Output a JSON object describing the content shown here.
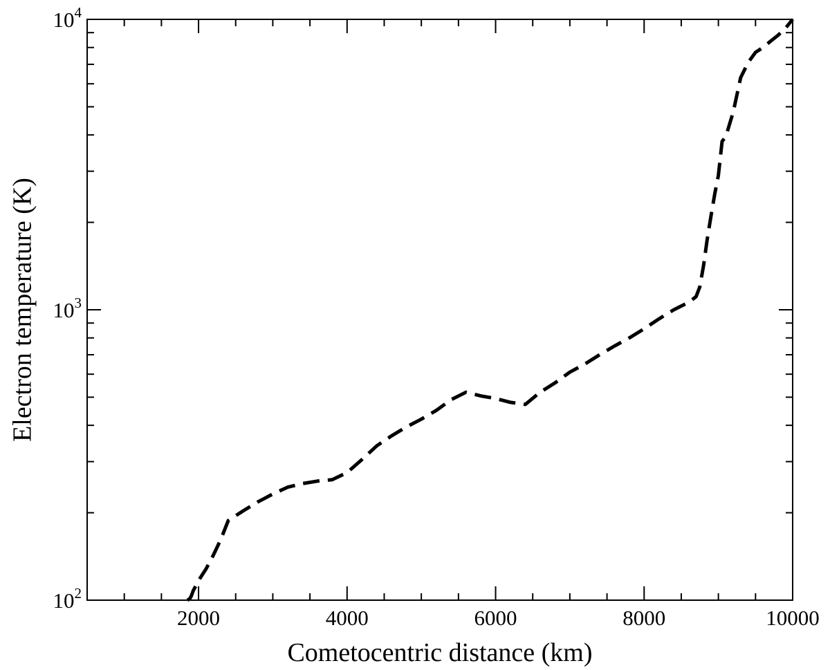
{
  "chart_data": {
    "type": "line",
    "xlabel": "Cometocentric distance (km)",
    "ylabel": "Electron temperature (K)",
    "xlim": [
      500,
      10000
    ],
    "ylim": [
      100,
      10000
    ],
    "yscale": "log",
    "grid": false,
    "x_ticks": [
      2000,
      4000,
      6000,
      8000,
      10000
    ],
    "x_tick_labels": [
      "2000",
      "4000",
      "6000",
      "8000",
      "10000"
    ],
    "y_ticks": [
      100,
      1000,
      10000
    ],
    "y_tick_labels": [
      {
        "base": "10",
        "exp": "2"
      },
      {
        "base": "10",
        "exp": "3"
      },
      {
        "base": "10",
        "exp": "4"
      }
    ],
    "series": [
      {
        "line_style": "dashed",
        "color": "#000000",
        "x": [
          1850,
          1880,
          1900,
          1930,
          1980,
          2020,
          2100,
          2200,
          2300,
          2400,
          2600,
          2800,
          3000,
          3200,
          3400,
          3600,
          3800,
          4000,
          4200,
          4400,
          4600,
          4800,
          5000,
          5200,
          5400,
          5600,
          5800,
          6000,
          6200,
          6400,
          6600,
          6800,
          7000,
          7200,
          7400,
          7600,
          7800,
          8000,
          8200,
          8400,
          8500,
          8600,
          8700,
          8750,
          8800,
          8850,
          8900,
          8950,
          9000,
          9050,
          9100,
          9200,
          9300,
          9400,
          9500,
          9600,
          9700,
          9800,
          9900,
          10000
        ],
        "y": [
          100,
          101,
          103,
          108,
          114,
          119,
          128,
          143,
          162,
          188,
          203,
          218,
          232,
          245,
          252,
          257,
          260,
          275,
          305,
          340,
          368,
          395,
          420,
          450,
          490,
          520,
          505,
          495,
          480,
          472,
          520,
          560,
          610,
          650,
          700,
          750,
          800,
          860,
          930,
          1000,
          1030,
          1060,
          1110,
          1200,
          1420,
          1750,
          2100,
          2500,
          2900,
          3800,
          3950,
          4800,
          6300,
          7100,
          7700,
          8000,
          8400,
          8800,
          9300,
          10000
        ]
      }
    ]
  }
}
